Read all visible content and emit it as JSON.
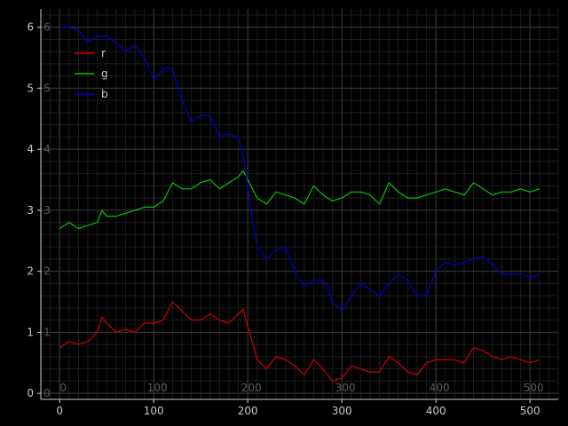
{
  "chart_data": {
    "type": "line",
    "title": "",
    "xlabel": "",
    "ylabel": "",
    "xlim": [
      -20,
      530
    ],
    "ylim": [
      -0.1,
      6.3
    ],
    "x_ticks": [
      0,
      100,
      200,
      300,
      400,
      500
    ],
    "y_ticks": [
      0,
      1,
      2,
      3,
      4,
      5,
      6
    ],
    "x_tick_labels": [
      "0",
      "100",
      "200",
      "300",
      "400",
      "500"
    ],
    "y_tick_labels": [
      "0",
      "1",
      "2",
      "3",
      "4",
      "5",
      "6"
    ],
    "inner_x_labels": [
      "0",
      "100",
      "200",
      "300",
      "400",
      "500"
    ],
    "inner_y_labels": [
      "0",
      "1",
      "2",
      "3",
      "4",
      "5",
      "6"
    ],
    "grid": true,
    "minor_grid": true,
    "legend": "upper-left",
    "series": [
      {
        "name": "r",
        "color": "#d00000",
        "x": [
          0,
          10,
          20,
          30,
          40,
          45,
          50,
          60,
          70,
          80,
          90,
          100,
          110,
          120,
          130,
          140,
          150,
          160,
          170,
          180,
          190,
          195,
          200,
          210,
          220,
          230,
          240,
          250,
          260,
          270,
          280,
          290,
          300,
          310,
          320,
          330,
          340,
          350,
          360,
          370,
          380,
          390,
          400,
          410,
          420,
          430,
          440,
          450,
          460,
          470,
          480,
          490,
          500,
          510
        ],
        "values": [
          0.75,
          0.85,
          0.8,
          0.85,
          1.0,
          1.25,
          1.15,
          1.0,
          1.05,
          1.0,
          1.15,
          1.15,
          1.2,
          1.5,
          1.35,
          1.2,
          1.2,
          1.3,
          1.2,
          1.15,
          1.3,
          1.38,
          1.1,
          0.55,
          0.4,
          0.6,
          0.55,
          0.45,
          0.3,
          0.55,
          0.4,
          0.2,
          0.25,
          0.45,
          0.4,
          0.35,
          0.35,
          0.6,
          0.5,
          0.35,
          0.3,
          0.5,
          0.55,
          0.55,
          0.55,
          0.5,
          0.75,
          0.7,
          0.6,
          0.55,
          0.6,
          0.55,
          0.5,
          0.55
        ]
      },
      {
        "name": "g",
        "color": "#00c800",
        "x": [
          0,
          10,
          20,
          30,
          40,
          45,
          50,
          60,
          70,
          80,
          90,
          100,
          110,
          120,
          130,
          140,
          150,
          160,
          170,
          180,
          190,
          195,
          200,
          210,
          220,
          230,
          240,
          250,
          260,
          270,
          280,
          290,
          300,
          310,
          320,
          330,
          340,
          350,
          360,
          370,
          380,
          390,
          400,
          410,
          420,
          430,
          440,
          450,
          460,
          470,
          480,
          490,
          500,
          510
        ],
        "values": [
          2.7,
          2.8,
          2.7,
          2.75,
          2.8,
          3.0,
          2.9,
          2.9,
          2.95,
          3.0,
          3.05,
          3.05,
          3.15,
          3.45,
          3.35,
          3.35,
          3.45,
          3.5,
          3.35,
          3.45,
          3.55,
          3.65,
          3.5,
          3.2,
          3.1,
          3.3,
          3.25,
          3.2,
          3.1,
          3.4,
          3.25,
          3.15,
          3.2,
          3.3,
          3.3,
          3.25,
          3.1,
          3.45,
          3.3,
          3.2,
          3.2,
          3.25,
          3.3,
          3.35,
          3.3,
          3.25,
          3.45,
          3.35,
          3.25,
          3.3,
          3.3,
          3.35,
          3.3,
          3.35
        ]
      },
      {
        "name": "b",
        "color": "#0000d0",
        "x": [
          0,
          10,
          20,
          25,
          30,
          40,
          50,
          60,
          70,
          80,
          90,
          100,
          110,
          115,
          120,
          130,
          140,
          150,
          160,
          170,
          180,
          190,
          195,
          200,
          205,
          210,
          220,
          230,
          240,
          250,
          260,
          270,
          280,
          290,
          300,
          310,
          320,
          330,
          340,
          350,
          360,
          370,
          380,
          390,
          400,
          410,
          420,
          430,
          440,
          450,
          460,
          470,
          480,
          490,
          500,
          510
        ],
        "values": [
          6.0,
          6.0,
          5.95,
          5.85,
          5.75,
          5.85,
          5.85,
          5.75,
          5.6,
          5.7,
          5.5,
          5.15,
          5.3,
          5.35,
          5.3,
          4.8,
          4.45,
          4.55,
          4.55,
          4.2,
          4.25,
          4.2,
          3.9,
          3.4,
          2.8,
          2.4,
          2.2,
          2.35,
          2.4,
          2.0,
          1.75,
          1.85,
          1.85,
          1.5,
          1.35,
          1.6,
          1.8,
          1.7,
          1.6,
          1.8,
          1.95,
          1.85,
          1.6,
          1.6,
          2.0,
          2.15,
          2.1,
          2.15,
          2.2,
          2.25,
          2.1,
          1.95,
          1.95,
          1.95,
          1.9,
          1.95
        ]
      }
    ]
  }
}
